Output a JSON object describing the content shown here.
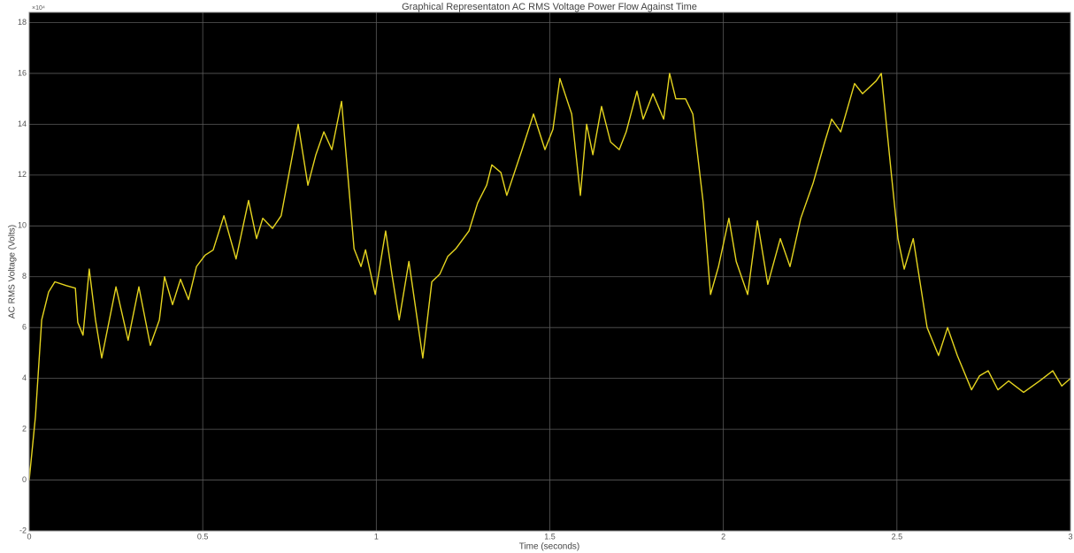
{
  "chart_data": {
    "type": "line",
    "title": "Graphical Representaton AC RMS Voltage Power Flow Against Time",
    "x_label": "Time (seconds)",
    "y_label": "AC RMS Voltage (Volts)",
    "y_exponent": "×10⁴",
    "xlim": [
      0,
      3
    ],
    "xticks": [
      0,
      0.5,
      1,
      1.5,
      2,
      2.5,
      3
    ],
    "ylim": [
      -2,
      18.4
    ],
    "yticks": [
      -2,
      0,
      2,
      4,
      6,
      8,
      10,
      12,
      14,
      16,
      18
    ],
    "grid": true,
    "background": "#000000",
    "grid_color": "#5a5a5a",
    "series": [
      {
        "name": null,
        "color": "#e6d51f",
        "x": [
          0,
          0.018,
          0.036,
          0.056,
          0.074,
          0.107,
          0.133,
          0.14,
          0.155,
          0.173,
          0.191,
          0.209,
          0.25,
          0.285,
          0.316,
          0.349,
          0.375,
          0.39,
          0.413,
          0.436,
          0.459,
          0.482,
          0.507,
          0.53,
          0.561,
          0.596,
          0.632,
          0.655,
          0.673,
          0.701,
          0.726,
          0.775,
          0.803,
          0.826,
          0.849,
          0.872,
          0.9,
          0.936,
          0.956,
          0.969,
          0.997,
          1.027,
          1.045,
          1.066,
          1.094,
          1.134,
          1.16,
          1.183,
          1.206,
          1.229,
          1.267,
          1.292,
          1.318,
          1.333,
          1.359,
          1.376,
          1.42,
          1.453,
          1.486,
          1.509,
          1.529,
          1.563,
          1.588,
          1.606,
          1.624,
          1.649,
          1.675,
          1.7,
          1.72,
          1.751,
          1.769,
          1.797,
          1.828,
          1.845,
          1.863,
          1.891,
          1.912,
          1.942,
          1.963,
          1.986,
          2.016,
          2.037,
          2.07,
          2.098,
          2.128,
          2.164,
          2.192,
          2.223,
          2.259,
          2.292,
          2.312,
          2.338,
          2.378,
          2.401,
          2.44,
          2.455,
          2.485,
          2.503,
          2.521,
          2.547,
          2.587,
          2.62,
          2.646,
          2.674,
          2.715,
          2.738,
          2.763,
          2.791,
          2.822,
          2.865,
          2.911,
          2.949,
          2.975,
          3.0
        ],
        "values": [
          0,
          2.5,
          6.3,
          7.4,
          7.8,
          7.65,
          7.55,
          6.2,
          5.7,
          8.3,
          6.3,
          4.8,
          7.6,
          5.5,
          7.6,
          5.3,
          6.3,
          8.0,
          6.9,
          7.9,
          7.1,
          8.4,
          8.85,
          9.05,
          10.4,
          8.7,
          11.0,
          9.5,
          10.3,
          9.9,
          10.4,
          14.0,
          11.6,
          12.8,
          13.7,
          13.0,
          14.9,
          9.1,
          8.4,
          9.06,
          7.3,
          9.8,
          8.1,
          6.3,
          8.6,
          4.8,
          7.8,
          8.1,
          8.8,
          9.1,
          9.8,
          10.9,
          11.6,
          12.4,
          12.1,
          11.2,
          13.0,
          14.4,
          13.0,
          13.8,
          15.8,
          14.4,
          11.2,
          14.0,
          12.8,
          14.7,
          13.3,
          13.0,
          13.7,
          15.3,
          14.2,
          15.2,
          14.2,
          16.0,
          15.0,
          15.0,
          14.4,
          10.9,
          7.3,
          8.4,
          10.3,
          8.6,
          7.3,
          10.2,
          7.7,
          9.5,
          8.4,
          10.3,
          11.7,
          13.3,
          14.2,
          13.7,
          15.6,
          15.2,
          15.7,
          16.0,
          11.9,
          9.5,
          8.3,
          9.5,
          6.0,
          4.9,
          6.0,
          4.9,
          3.55,
          4.1,
          4.3,
          3.55,
          3.9,
          3.45,
          3.9,
          4.3,
          3.7,
          4.0
        ]
      }
    ]
  }
}
